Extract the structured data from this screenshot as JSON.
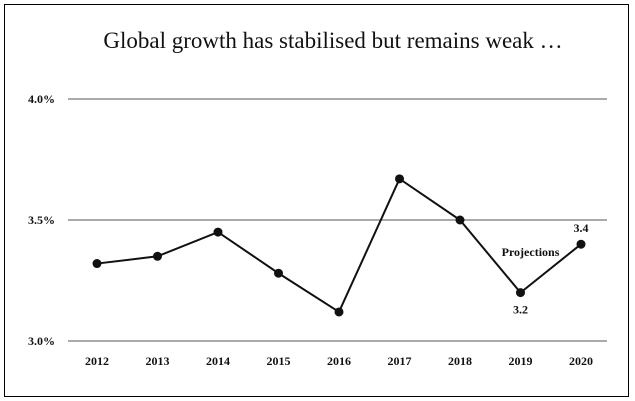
{
  "chart_data": {
    "type": "line",
    "title": "Global growth has stabilised but remains weak …",
    "xlabel": "",
    "ylabel": "",
    "categories": [
      "2012",
      "2013",
      "2014",
      "2015",
      "2016",
      "2017",
      "2018",
      "2019",
      "2020"
    ],
    "series": [
      {
        "values": [
          3.32,
          3.35,
          3.45,
          3.28,
          3.12,
          3.67,
          3.5,
          3.2,
          3.4
        ]
      }
    ],
    "ylim": [
      3.0,
      4.0
    ],
    "y_ticks": [
      {
        "value": 3.0,
        "label": "3.0%"
      },
      {
        "value": 3.5,
        "label": "3.5%"
      },
      {
        "value": 4.0,
        "label": "4.0%"
      }
    ],
    "grid": true,
    "legend": "none",
    "annotations": [
      {
        "text": "Projections",
        "category": "2019",
        "value": 3.2
      }
    ],
    "data_labels": [
      {
        "category": "2019",
        "value": 3.2,
        "text": "3.2",
        "position": "below"
      },
      {
        "category": "2020",
        "value": 3.4,
        "text": "3.4",
        "position": "above"
      }
    ],
    "colors": {
      "line": "#111111",
      "marker": "#111111",
      "grid": "#555555",
      "frame": "#000000"
    }
  }
}
